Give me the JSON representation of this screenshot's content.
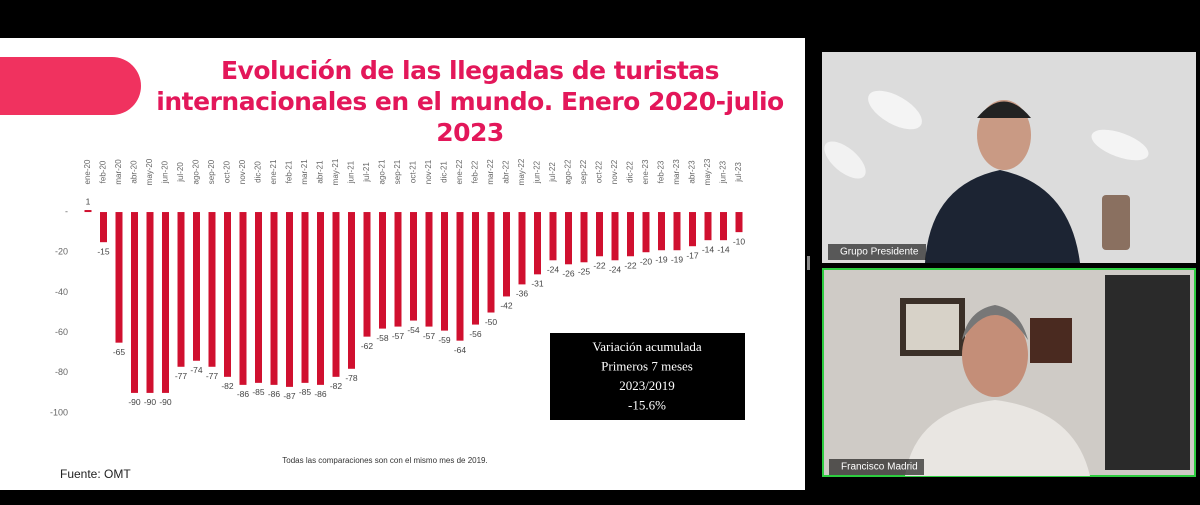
{
  "chart_data": {
    "type": "bar",
    "title": "Evolución de las llegadas de turistas internacionales en el mundo. Enero 2020-julio 2023",
    "categories": [
      "ene-20",
      "feb-20",
      "mar-20",
      "abr-20",
      "may-20",
      "jun-20",
      "jul-20",
      "ago-20",
      "sep-20",
      "oct-20",
      "nov-20",
      "dic-20",
      "ene-21",
      "feb-21",
      "mar-21",
      "abr-21",
      "may-21",
      "jun-21",
      "jul-21",
      "ago-21",
      "sep-21",
      "oct-21",
      "nov-21",
      "dic-21",
      "ene-22",
      "feb-22",
      "mar-22",
      "abr-22",
      "may-22",
      "jun-22",
      "jul-22",
      "ago-22",
      "sep-22",
      "oct-22",
      "nov-22",
      "dic-22",
      "ene-23",
      "feb-23",
      "mar-23",
      "abr-23",
      "may-23",
      "jun-23",
      "jul-23"
    ],
    "values": [
      1,
      -15,
      -65,
      -90,
      -90,
      -90,
      -77,
      -74,
      -77,
      -82,
      -86,
      -85,
      -86,
      -87,
      -85,
      -86,
      -82,
      -78,
      -62,
      -58,
      -57,
      -54,
      -57,
      -59,
      -64,
      -56,
      -50,
      -42,
      -36,
      -31,
      -24,
      -26,
      -25,
      -22,
      -24,
      -22,
      -20,
      -19,
      -19,
      -17,
      -14,
      -14,
      -10
    ],
    "color": "#d0102f",
    "ylim": [
      -100,
      5
    ],
    "yticks": [
      {
        "value": 0,
        "label": "-"
      },
      -20,
      -40,
      -60,
      -80,
      -100
    ],
    "annotation": [
      "Variación acumulada",
      "Primeros 7 meses",
      "2023/2019",
      "-15.6%"
    ],
    "note": "Todas las comparaciones son con el mismo mes de 2019.",
    "source": "Fuente: OMT"
  },
  "participants": [
    "Grupo Presidente",
    "Francisco Madrid"
  ]
}
